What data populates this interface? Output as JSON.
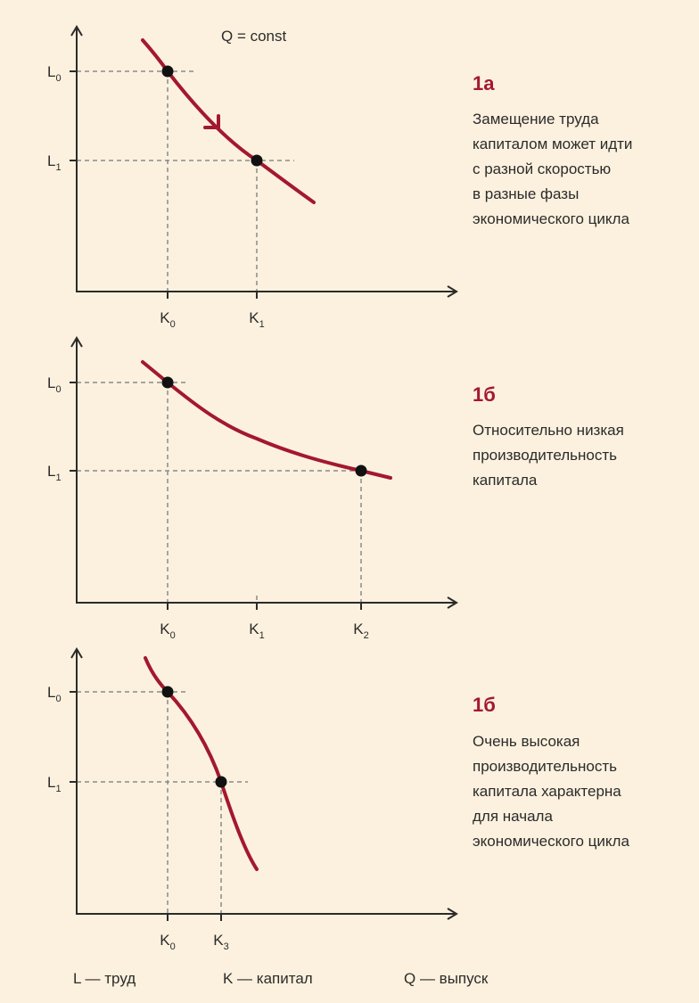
{
  "top_label": "Q = const",
  "panels": [
    {
      "tag": "1а",
      "description": [
        "Замещение труда",
        "капиталом может идти",
        "с разной скоростью",
        "в разные фазы",
        "экономического цикла"
      ],
      "y_labels": [
        {
          "main": "L",
          "sub": "0"
        },
        {
          "main": "L",
          "sub": "1"
        }
      ],
      "x_labels": [
        {
          "main": "K",
          "sub": "0"
        },
        {
          "main": "K",
          "sub": "1"
        }
      ]
    },
    {
      "tag": "1б",
      "description": [
        "Относительно низкая",
        "производительность",
        "капитала"
      ],
      "y_labels": [
        {
          "main": "L",
          "sub": "0"
        },
        {
          "main": "L",
          "sub": "1"
        }
      ],
      "x_labels": [
        {
          "main": "K",
          "sub": "0"
        },
        {
          "main": "K",
          "sub": "1"
        },
        {
          "main": "K",
          "sub": "2"
        }
      ]
    },
    {
      "tag": "1б",
      "description": [
        "Очень высокая",
        "производительность",
        "капитала характерна",
        "для начала",
        "экономического цикла"
      ],
      "y_labels": [
        {
          "main": "L",
          "sub": "0"
        },
        {
          "main": "L",
          "sub": "1"
        }
      ],
      "x_labels": [
        {
          "main": "K",
          "sub": "0"
        },
        {
          "main": "K",
          "sub": "3"
        }
      ]
    }
  ],
  "legend": [
    "L — труд",
    "K — капитал",
    "Q — выпуск"
  ]
}
